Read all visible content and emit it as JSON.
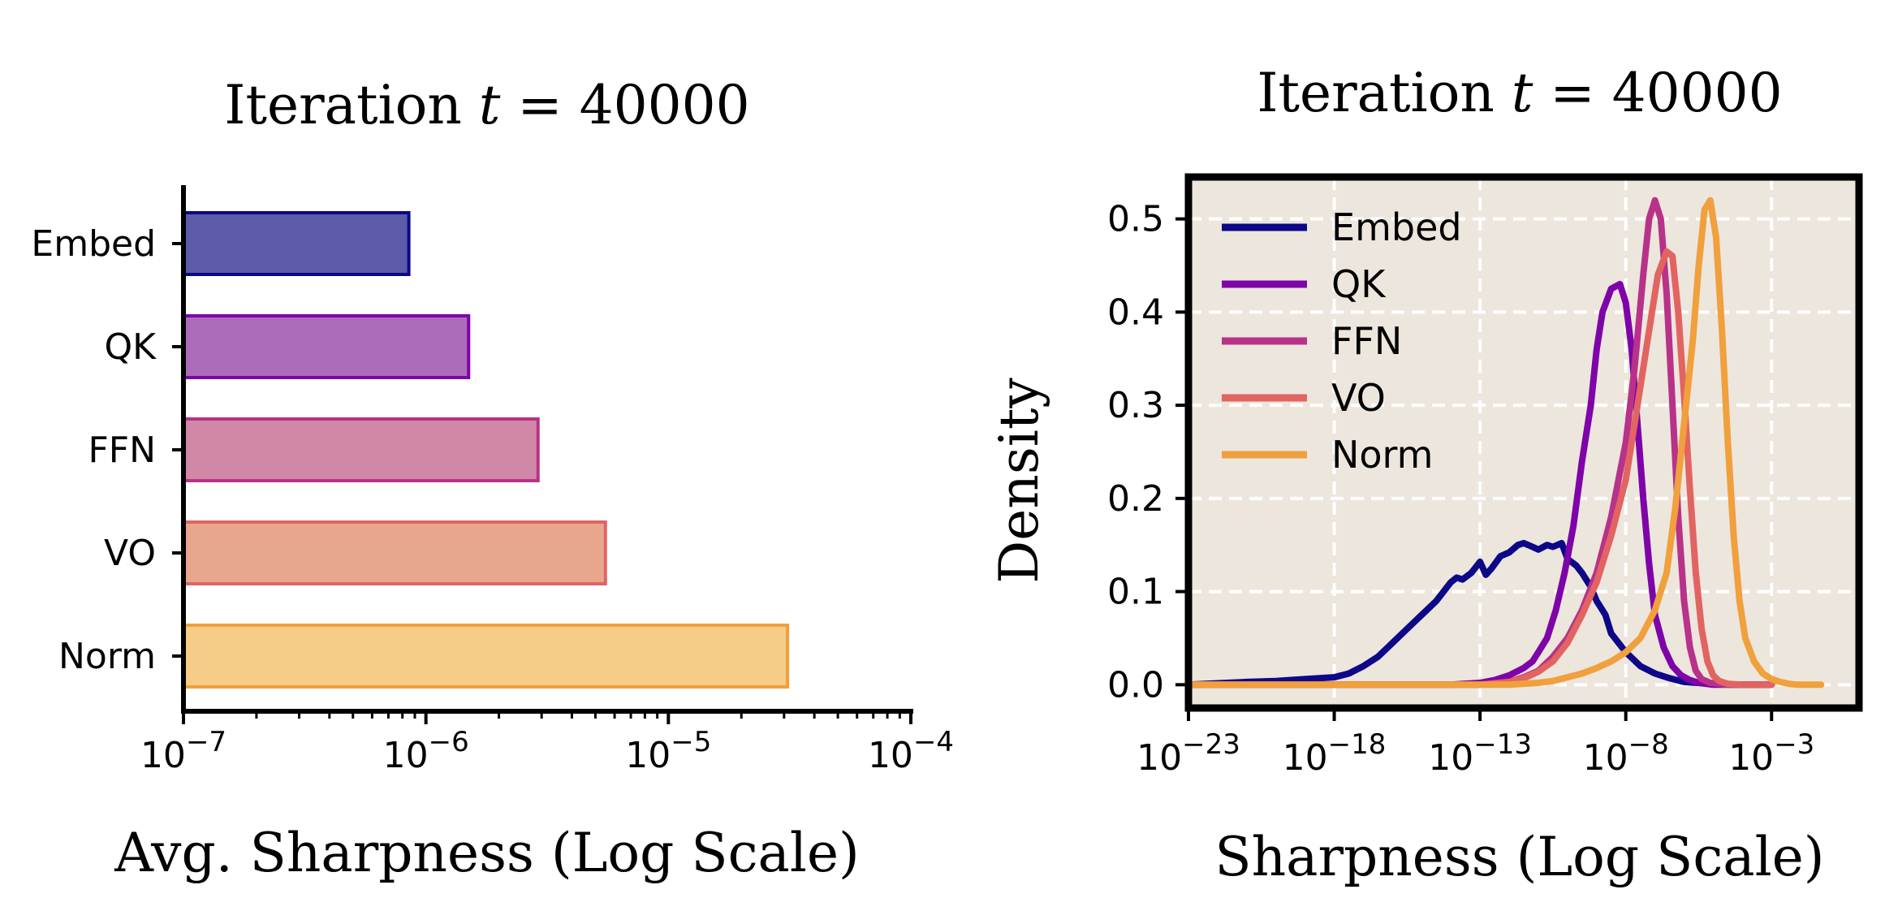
{
  "chart_data": [
    {
      "type": "bar",
      "orientation": "horizontal",
      "title_prefix": "Iteration ",
      "title_var": "t",
      "title_suffix": " = 40000",
      "categories": [
        "Embed",
        "QK",
        "FFN",
        "VO",
        "Norm"
      ],
      "values": [
        8.5e-07,
        1.5e-06,
        2.9e-06,
        5.5e-06,
        3.1e-05
      ],
      "colors": [
        "#0d0887",
        "#7e03a8",
        "#b83289",
        "#e16462",
        "#f0a03c"
      ],
      "fill_colors": [
        "#5b5ba8",
        "#ad6cba",
        "#d187a6",
        "#e8a78d",
        "#f5cc88"
      ],
      "xlabel": "Avg. Sharpness (Log Scale)",
      "xscale": "log",
      "xlim": [
        1e-07,
        0.0001
      ],
      "xticks": [
        {
          "base": "10",
          "exp": "−7"
        },
        {
          "base": "10",
          "exp": "−6"
        },
        {
          "base": "10",
          "exp": "−5"
        },
        {
          "base": "10",
          "exp": "−4"
        }
      ]
    },
    {
      "type": "line",
      "title_prefix": "Iteration ",
      "title_var": "t",
      "title_suffix": " = 40000",
      "xlabel": "Sharpness (Log Scale)",
      "ylabel": "Density",
      "xscale": "log",
      "xlim_log10": [
        -23,
        0
      ],
      "ylim": [
        -0.025,
        0.545
      ],
      "grid": true,
      "legend_position": "top-left",
      "yticks": [
        "0.0",
        "0.1",
        "0.2",
        "0.3",
        "0.4",
        "0.5"
      ],
      "xticks": [
        {
          "base": "10",
          "exp": "−23"
        },
        {
          "base": "10",
          "exp": "−18"
        },
        {
          "base": "10",
          "exp": "−13"
        },
        {
          "base": "10",
          "exp": "−8"
        },
        {
          "base": "10",
          "exp": "−3"
        }
      ],
      "series": [
        {
          "name": "Embed",
          "color": "#0d0887",
          "x_log10": [
            -23,
            -21,
            -20,
            -19,
            -18,
            -17.5,
            -17,
            -16.5,
            -16,
            -15.5,
            -15,
            -14.5,
            -14,
            -13.8,
            -13.6,
            -13.3,
            -13,
            -12.8,
            -12.6,
            -12.3,
            -12,
            -11.7,
            -11.5,
            -11.2,
            -11,
            -10.7,
            -10.5,
            -10.2,
            -10,
            -9.7,
            -9.5,
            -9.2,
            -9,
            -8.7,
            -8.5,
            -8,
            -7.5,
            -7,
            -6.5,
            -6,
            -5,
            -4,
            -3
          ],
          "y": [
            0.0,
            0.003,
            0.004,
            0.006,
            0.008,
            0.012,
            0.02,
            0.03,
            0.045,
            0.06,
            0.075,
            0.09,
            0.11,
            0.115,
            0.113,
            0.12,
            0.132,
            0.118,
            0.125,
            0.138,
            0.142,
            0.15,
            0.152,
            0.148,
            0.145,
            0.15,
            0.148,
            0.152,
            0.135,
            0.128,
            0.12,
            0.105,
            0.09,
            0.075,
            0.055,
            0.035,
            0.02,
            0.012,
            0.007,
            0.003,
            0.001,
            0.0,
            0.0
          ]
        },
        {
          "name": "QK",
          "color": "#7e03a8",
          "x_log10": [
            -23,
            -14,
            -13,
            -12.5,
            -12,
            -11.5,
            -11.2,
            -11,
            -10.7,
            -10.4,
            -10.1,
            -9.8,
            -9.5,
            -9.2,
            -9,
            -8.8,
            -8.5,
            -8.2,
            -8,
            -7.8,
            -7.6,
            -7.4,
            -7.2,
            -7,
            -6.7,
            -6.4,
            -6.1,
            -5.8,
            -5.5,
            -5,
            -4,
            -3
          ],
          "y": [
            0.0,
            0.0,
            0.002,
            0.005,
            0.01,
            0.018,
            0.025,
            0.035,
            0.05,
            0.08,
            0.12,
            0.17,
            0.24,
            0.3,
            0.36,
            0.4,
            0.425,
            0.43,
            0.41,
            0.36,
            0.28,
            0.2,
            0.13,
            0.075,
            0.04,
            0.02,
            0.01,
            0.005,
            0.002,
            0.0,
            0.0,
            0.0
          ]
        },
        {
          "name": "FFN",
          "color": "#b83289",
          "x_log10": [
            -23,
            -13,
            -12,
            -11.5,
            -11,
            -10.5,
            -10,
            -9.5,
            -9,
            -8.5,
            -8,
            -7.7,
            -7.4,
            -7.2,
            -7,
            -6.8,
            -6.6,
            -6.4,
            -6.2,
            -6,
            -5.8,
            -5.6,
            -5.4,
            -5.1,
            -4.8,
            -4.5,
            -4,
            -3
          ],
          "y": [
            0.0,
            0.0,
            0.003,
            0.008,
            0.015,
            0.03,
            0.05,
            0.08,
            0.12,
            0.18,
            0.26,
            0.34,
            0.44,
            0.5,
            0.52,
            0.5,
            0.42,
            0.3,
            0.18,
            0.09,
            0.04,
            0.015,
            0.006,
            0.002,
            0.001,
            0.0,
            0.0,
            0.0
          ]
        },
        {
          "name": "VO",
          "color": "#e16462",
          "x_log10": [
            -23,
            -13,
            -12,
            -11.5,
            -11,
            -10.5,
            -10,
            -9.5,
            -9,
            -8.5,
            -8,
            -7.6,
            -7.2,
            -6.9,
            -6.6,
            -6.4,
            -6.2,
            -6,
            -5.8,
            -5.6,
            -5.4,
            -5.2,
            -5,
            -4.8,
            -4.5,
            -4,
            -3
          ],
          "y": [
            0.0,
            0.0,
            0.003,
            0.007,
            0.014,
            0.025,
            0.045,
            0.075,
            0.11,
            0.16,
            0.22,
            0.3,
            0.38,
            0.44,
            0.465,
            0.46,
            0.4,
            0.31,
            0.21,
            0.12,
            0.06,
            0.025,
            0.01,
            0.004,
            0.001,
            0.0,
            0.0
          ]
        },
        {
          "name": "Norm",
          "color": "#f0a03c",
          "x_log10": [
            -23,
            -12,
            -11,
            -10.5,
            -10,
            -9.5,
            -9,
            -8.5,
            -8,
            -7.5,
            -7,
            -6.6,
            -6.3,
            -6,
            -5.7,
            -5.5,
            -5.3,
            -5.1,
            -4.9,
            -4.7,
            -4.5,
            -4.3,
            -4.1,
            -3.9,
            -3.6,
            -3.3,
            -3,
            -2.7,
            -2.4,
            -2.1,
            -1.8,
            -1.5,
            -1.3
          ],
          "y": [
            0.0,
            0.0,
            0.002,
            0.004,
            0.008,
            0.012,
            0.018,
            0.025,
            0.035,
            0.05,
            0.08,
            0.12,
            0.19,
            0.28,
            0.37,
            0.45,
            0.51,
            0.52,
            0.48,
            0.38,
            0.26,
            0.16,
            0.09,
            0.05,
            0.025,
            0.012,
            0.006,
            0.003,
            0.001,
            0.0,
            0.0,
            0.0,
            0.0
          ]
        }
      ]
    }
  ]
}
